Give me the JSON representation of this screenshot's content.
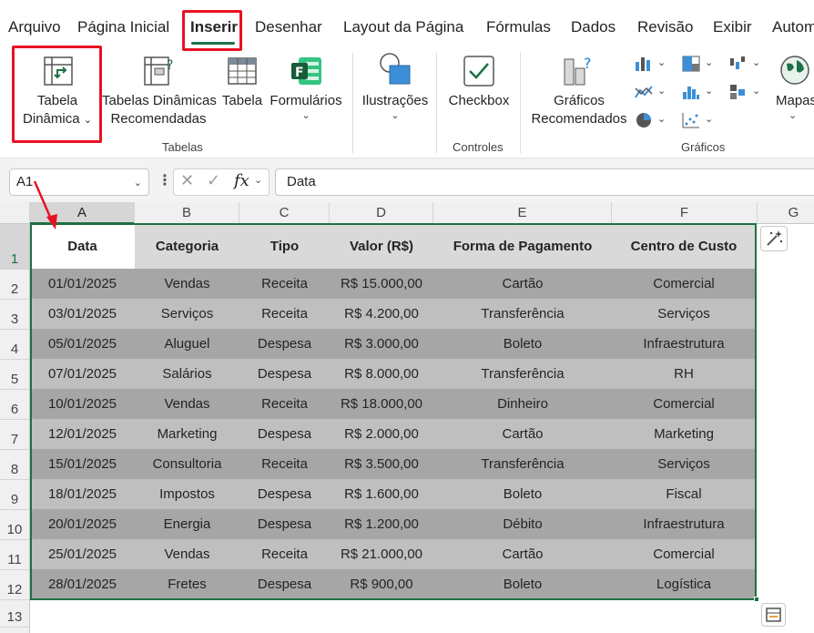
{
  "menu": {
    "tabs": [
      "Arquivo",
      "Página Inicial",
      "Inserir",
      "Desenhar",
      "Layout da Página",
      "Fórmulas",
      "Dados",
      "Revisão",
      "Exibir",
      "Autom"
    ],
    "active": "Inserir"
  },
  "ribbon": {
    "tabela_dinamica": [
      "Tabela",
      "Dinâmica"
    ],
    "tabelas_dinamicas_recomendadas": [
      "Tabelas Dinâmicas",
      "Recomendadas"
    ],
    "tabela": "Tabela",
    "formularios": "Formulários",
    "ilustracoes": "Ilustrações",
    "checkbox": "Checkbox",
    "graficos_recomendados": [
      "Gráficos",
      "Recomendados"
    ],
    "mapas": "Mapas",
    "groups": {
      "tabelas": "Tabelas",
      "controles": "Controles",
      "graficos": "Gráficos"
    },
    "accent_color": "#1e7145",
    "highlight_color": "#e81123"
  },
  "formula_bar": {
    "name_box": "A1",
    "fx": "fx",
    "content": "Data"
  },
  "columns": [
    "A",
    "B",
    "C",
    "D",
    "E",
    "F",
    "G"
  ],
  "rows": [
    "1",
    "2",
    "3",
    "4",
    "5",
    "6",
    "7",
    "8",
    "9",
    "10",
    "11",
    "12",
    "13"
  ],
  "table": {
    "headers": [
      "Data",
      "Categoria",
      "Tipo",
      "Valor (R$)",
      "Forma de Pagamento",
      "Centro de Custo"
    ],
    "rows": [
      [
        "01/01/2025",
        "Vendas",
        "Receita",
        "R$ 15.000,00",
        "Cartão",
        "Comercial"
      ],
      [
        "03/01/2025",
        "Serviços",
        "Receita",
        "R$ 4.200,00",
        "Transferência",
        "Serviços"
      ],
      [
        "05/01/2025",
        "Aluguel",
        "Despesa",
        "R$ 3.000,00",
        "Boleto",
        "Infraestrutura"
      ],
      [
        "07/01/2025",
        "Salários",
        "Despesa",
        "R$ 8.000,00",
        "Transferência",
        "RH"
      ],
      [
        "10/01/2025",
        "Vendas",
        "Receita",
        "R$ 18.000,00",
        "Dinheiro",
        "Comercial"
      ],
      [
        "12/01/2025",
        "Marketing",
        "Despesa",
        "R$ 2.000,00",
        "Cartão",
        "Marketing"
      ],
      [
        "15/01/2025",
        "Consultoria",
        "Receita",
        "R$ 3.500,00",
        "Transferência",
        "Serviços"
      ],
      [
        "18/01/2025",
        "Impostos",
        "Despesa",
        "R$ 1.600,00",
        "Boleto",
        "Fiscal"
      ],
      [
        "20/01/2025",
        "Energia",
        "Despesa",
        "R$ 1.200,00",
        "Débito",
        "Infraestrutura"
      ],
      [
        "25/01/2025",
        "Vendas",
        "Receita",
        "R$ 21.000,00",
        "Cartão",
        "Comercial"
      ],
      [
        "28/01/2025",
        "Fretes",
        "Despesa",
        "R$ 900,00",
        "Boleto",
        "Logística"
      ]
    ]
  }
}
